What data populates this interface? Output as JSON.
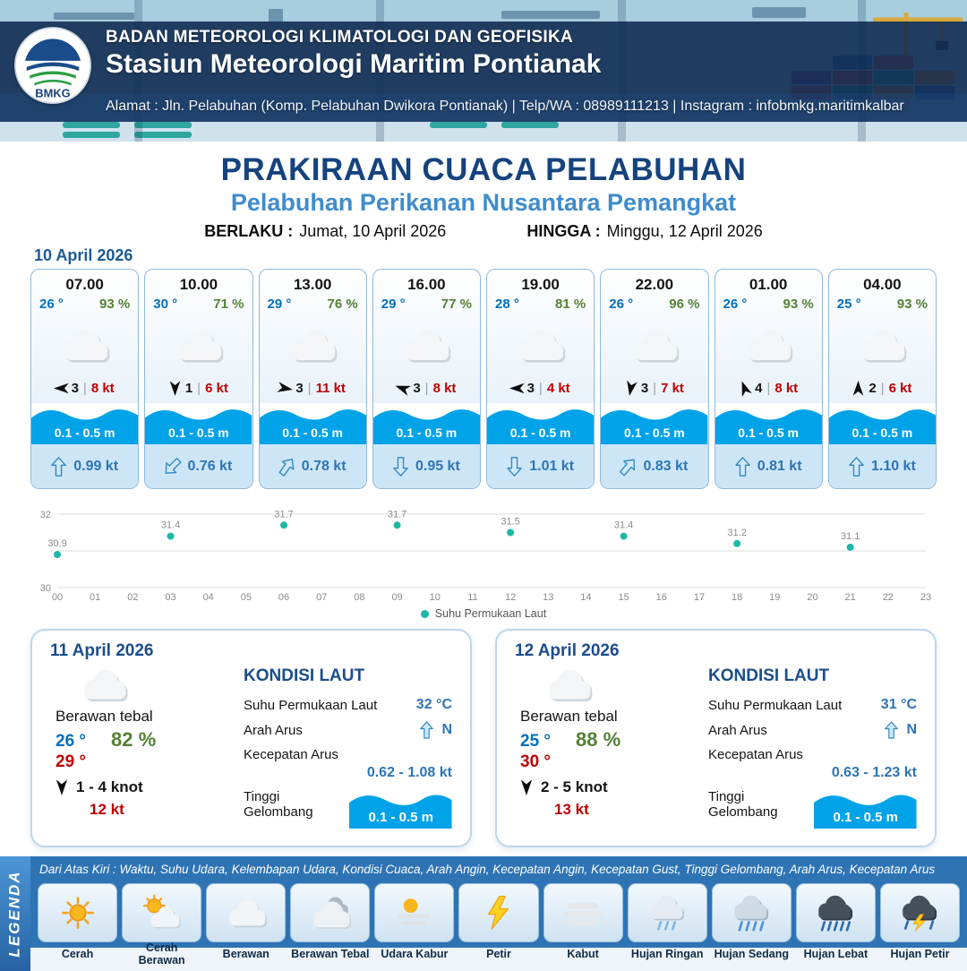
{
  "colors": {
    "accent_dark": "#16437e",
    "accent_blue": "#3f8ccc",
    "temp_blue": "#0070c0",
    "humidity_green": "#548135",
    "gust_red": "#c00000",
    "wave_blue": "#00a3e8",
    "sea_blue": "#2e74b5",
    "legend_blue": "#2e74b5",
    "point_teal": "#1db8a5"
  },
  "ui": {
    "separator": "|"
  },
  "header": {
    "logo_text": "BMKG",
    "org_line": "BADAN METEOROLOGI KLIMATOLOGI DAN GEOFISIKA",
    "station_line": "Stasiun Meteorologi Maritim Pontianak",
    "address_line": "Alamat : Jln. Pelabuhan (Komp. Pelabuhan Dwikora Pontianak) | Telp/WA : 08989111213 | Instagram : infobmkg.maritimkalbar"
  },
  "title": {
    "main": "PRAKIRAAN CUACA PELABUHAN",
    "subtitle": "Pelabuhan Perikanan Nusantara Pemangkat",
    "valid_from_label": "BERLAKU :",
    "valid_from_value": "Jumat, 10 April 2026",
    "valid_to_label": "HINGGA :",
    "valid_to_value": "Minggu, 12 April 2026"
  },
  "hourly": {
    "date": "10 April 2026",
    "cards": [
      {
        "time": "07.00",
        "temp": "26 °",
        "humidity": "93 %",
        "condition": "Berawan",
        "wind_dir_deg": 270,
        "wind_speed": "3",
        "gust": "8 kt",
        "wave": "0.1 - 0.5 m",
        "current_dir_deg": 0,
        "current_speed": "0.99 kt"
      },
      {
        "time": "10.00",
        "temp": "30 °",
        "humidity": "71 %",
        "condition": "Berawan",
        "wind_dir_deg": 180,
        "wind_speed": "1",
        "gust": "6 kt",
        "wave": "0.1 - 0.5 m",
        "current_dir_deg": 225,
        "current_speed": "0.76 kt"
      },
      {
        "time": "13.00",
        "temp": "29 °",
        "humidity": "76 %",
        "condition": "Berawan",
        "wind_dir_deg": 100,
        "wind_speed": "3",
        "gust": "11 kt",
        "wave": "0.1 - 0.5 m",
        "current_dir_deg": 35,
        "current_speed": "0.78 kt"
      },
      {
        "time": "16.00",
        "temp": "29 °",
        "humidity": "77 %",
        "condition": "Berawan",
        "wind_dir_deg": 290,
        "wind_speed": "3",
        "gust": "8 kt",
        "wave": "0.1 - 0.5 m",
        "current_dir_deg": 180,
        "current_speed": "0.95 kt"
      },
      {
        "time": "19.00",
        "temp": "28 °",
        "humidity": "81 %",
        "condition": "Berawan",
        "wind_dir_deg": 270,
        "wind_speed": "3",
        "gust": "4 kt",
        "wave": "0.1 - 0.5 m",
        "current_dir_deg": 180,
        "current_speed": "1.01 kt"
      },
      {
        "time": "22.00",
        "temp": "26 °",
        "humidity": "96 %",
        "condition": "Berawan",
        "wind_dir_deg": 190,
        "wind_speed": "3",
        "gust": "7 kt",
        "wave": "0.1 - 0.5 m",
        "current_dir_deg": 40,
        "current_speed": "0.83 kt"
      },
      {
        "time": "01.00",
        "temp": "26 °",
        "humidity": "93 %",
        "condition": "Berawan",
        "wind_dir_deg": 340,
        "wind_speed": "4",
        "gust": "8 kt",
        "wave": "0.1 - 0.5 m",
        "current_dir_deg": 0,
        "current_speed": "0.81 kt"
      },
      {
        "time": "04.00",
        "temp": "25 °",
        "humidity": "93 %",
        "condition": "Berawan",
        "wind_dir_deg": 0,
        "wind_speed": "2",
        "gust": "6 kt",
        "wave": "0.1 - 0.5 m",
        "current_dir_deg": 0,
        "current_speed": "1.10 kt"
      }
    ]
  },
  "chart_data": {
    "type": "scatter",
    "title": "",
    "xlabel": "",
    "ylabel": "",
    "ylim": [
      30,
      32
    ],
    "y_ticks": [
      30,
      32
    ],
    "gridlines": [
      30,
      31,
      32
    ],
    "x_ticks": [
      "00",
      "01",
      "02",
      "03",
      "04",
      "05",
      "06",
      "07",
      "08",
      "09",
      "10",
      "11",
      "12",
      "13",
      "14",
      "15",
      "16",
      "17",
      "18",
      "19",
      "20",
      "21",
      "22",
      "23"
    ],
    "series": [
      {
        "name": "Suhu Permukaan Laut",
        "x": [
          0,
          3,
          6,
          9,
          12,
          15,
          18,
          21
        ],
        "values": [
          30.9,
          31.4,
          31.7,
          31.7,
          31.5,
          31.4,
          31.2,
          31.1
        ]
      }
    ],
    "legend": "Suhu Permukaan Laut",
    "legend_position": "bottom",
    "grid": true,
    "point_color": "#1db8a5"
  },
  "daily": [
    {
      "date": "11 April 2026",
      "condition": "Berawan tebal",
      "temp_min": "26 °",
      "humidity": "82 %",
      "temp_max": "29 °",
      "wind_dir_deg": 180,
      "wind_range": "1 - 4 knot",
      "gust": "12 kt",
      "sea": {
        "heading": "KONDISI LAUT",
        "sst_label": "Suhu Permukaan Laut",
        "sst_value": "32 °C",
        "current_dir_label": "Arah Arus",
        "current_dir_value": "N",
        "current_dir_deg": 0,
        "current_speed_label": "Kecepatan Arus",
        "current_speed_value": "0.62 - 1.08 kt",
        "wave_label": "Tinggi Gelombang",
        "wave_value": "0.1 - 0.5 m"
      }
    },
    {
      "date": "12 April 2026",
      "condition": "Berawan tebal",
      "temp_min": "25 °",
      "humidity": "88 %",
      "temp_max": "30 °",
      "wind_dir_deg": 180,
      "wind_range": "2 - 5 knot",
      "gust": "13 kt",
      "sea": {
        "heading": "KONDISI LAUT",
        "sst_label": "Suhu Permukaan Laut",
        "sst_value": "31 °C",
        "current_dir_label": "Arah Arus",
        "current_dir_value": "N",
        "current_dir_deg": 0,
        "current_speed_label": "Kecepatan Arus",
        "current_speed_value": "0.63 - 1.23 kt",
        "wave_label": "Tinggi Gelombang",
        "wave_value": "0.1 - 0.5 m"
      }
    }
  ],
  "legend": {
    "tab": "LEGENDA",
    "note": "Dari Atas Kiri : Waktu, Suhu Udara, Kelembapan Udara, Kondisi Cuaca, Arah Angin, Kecepatan Angin, Kecepatan Gust, Tinggi Gelombang, Arah Arus, Kecepatan Arus",
    "items": [
      {
        "label": "Cerah",
        "icon": "sun"
      },
      {
        "label": "Cerah Berawan",
        "icon": "sun-cloud"
      },
      {
        "label": "Berawan",
        "icon": "cloud"
      },
      {
        "label": "Berawan Tebal",
        "icon": "thick-cloud"
      },
      {
        "label": "Udara Kabur",
        "icon": "haze"
      },
      {
        "label": "Petir",
        "icon": "lightning"
      },
      {
        "label": "Kabut",
        "icon": "fog"
      },
      {
        "label": "Hujan Ringan",
        "icon": "light-rain"
      },
      {
        "label": "Hujan Sedang",
        "icon": "moderate-rain"
      },
      {
        "label": "Hujan Lebat",
        "icon": "heavy-rain"
      },
      {
        "label": "Hujan Petir",
        "icon": "thunderstorm"
      }
    ]
  }
}
